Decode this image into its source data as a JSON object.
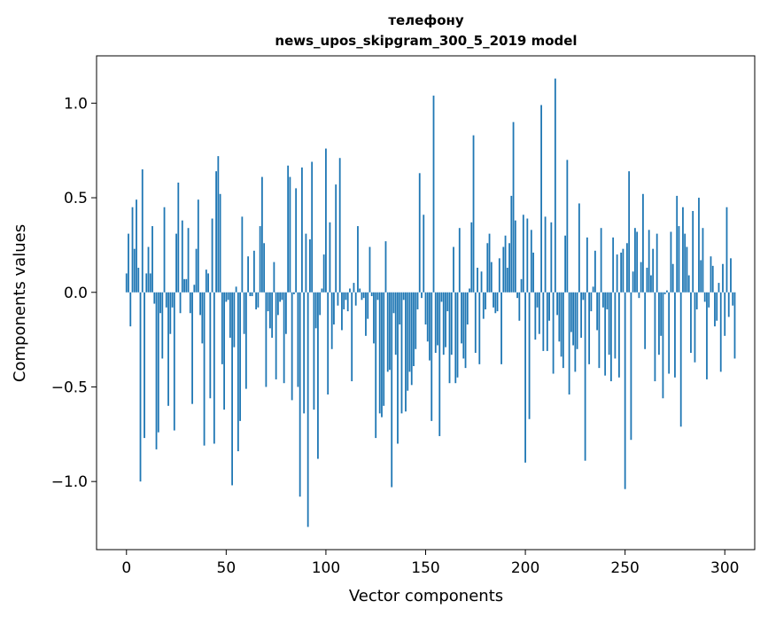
{
  "chart_data": {
    "type": "bar",
    "title_line1": "телефону",
    "title_line2": "news_upos_skipgram_300_5_2019 model",
    "xlabel": "Vector components",
    "ylabel": "Components values",
    "xlim": [
      -15,
      315
    ],
    "ylim": [
      -1.36,
      1.25
    ],
    "xticks": [
      0,
      50,
      100,
      150,
      200,
      250,
      300
    ],
    "xtick_labels": [
      "0",
      "50",
      "100",
      "150",
      "200",
      "250",
      "300"
    ],
    "yticks": [
      -1.0,
      -0.5,
      0.0,
      0.5,
      1.0
    ],
    "ytick_labels": [
      "−1.0",
      "−0.5",
      "0.0",
      "0.5",
      "1.0"
    ],
    "grid": false,
    "bar_color": "#1f77b4",
    "values": [
      0.1,
      0.31,
      -0.18,
      0.45,
      0.23,
      0.49,
      0.13,
      -1.0,
      0.65,
      -0.77,
      0.1,
      0.24,
      0.1,
      0.35,
      -0.06,
      -0.83,
      -0.74,
      -0.11,
      -0.35,
      0.45,
      -0.08,
      -0.6,
      -0.22,
      -0.08,
      -0.73,
      0.31,
      0.58,
      -0.11,
      0.38,
      0.07,
      0.07,
      0.34,
      -0.11,
      -0.59,
      0.04,
      0.23,
      0.49,
      -0.12,
      -0.27,
      -0.81,
      0.12,
      0.1,
      -0.56,
      0.39,
      -0.8,
      0.64,
      0.72,
      0.52,
      -0.38,
      -0.62,
      -0.05,
      -0.04,
      -0.24,
      -1.02,
      -0.29,
      0.03,
      -0.84,
      -0.68,
      0.4,
      -0.22,
      -0.51,
      0.19,
      -0.02,
      -0.02,
      0.22,
      -0.09,
      -0.08,
      0.35,
      0.61,
      0.26,
      -0.5,
      -0.1,
      -0.19,
      -0.24,
      0.16,
      -0.46,
      -0.12,
      -0.05,
      -0.04,
      -0.48,
      -0.22,
      0.67,
      0.61,
      -0.57,
      -0.01,
      0.55,
      -0.5,
      -1.08,
      0.66,
      -0.64,
      0.31,
      -1.24,
      0.28,
      0.69,
      -0.62,
      -0.19,
      -0.88,
      -0.12,
      0.02,
      0.2,
      0.76,
      -0.54,
      0.37,
      -0.3,
      -0.17,
      0.57,
      -0.07,
      0.71,
      -0.2,
      -0.09,
      -0.04,
      -0.1,
      0.02,
      -0.47,
      0.05,
      -0.07,
      0.35,
      0.02,
      -0.04,
      -0.03,
      -0.23,
      -0.14,
      0.24,
      -0.02,
      -0.27,
      -0.77,
      -0.04,
      -0.64,
      -0.66,
      -0.6,
      0.27,
      -0.42,
      -0.41,
      -1.03,
      -0.11,
      -0.33,
      -0.8,
      -0.17,
      -0.64,
      -0.04,
      -0.63,
      -0.52,
      -0.42,
      -0.49,
      -0.39,
      -0.3,
      -0.09,
      0.63,
      -0.03,
      0.41,
      -0.17,
      -0.26,
      -0.36,
      -0.68,
      1.04,
      -0.32,
      -0.28,
      -0.76,
      -0.05,
      -0.33,
      -0.29,
      -0.1,
      -0.48,
      -0.33,
      0.24,
      -0.48,
      -0.45,
      0.34,
      -0.27,
      -0.35,
      -0.4,
      -0.17,
      0.02,
      0.37,
      0.83,
      -0.32,
      0.13,
      -0.38,
      0.11,
      -0.14,
      -0.09,
      0.26,
      0.31,
      0.16,
      -0.08,
      -0.11,
      -0.1,
      0.18,
      -0.38,
      0.24,
      0.3,
      0.13,
      0.26,
      0.51,
      0.9,
      0.38,
      -0.03,
      -0.15,
      0.07,
      0.41,
      -0.9,
      0.39,
      -0.67,
      0.33,
      0.21,
      -0.25,
      -0.08,
      -0.22,
      0.99,
      -0.31,
      0.4,
      -0.31,
      -0.15,
      0.37,
      -0.43,
      1.13,
      -0.12,
      -0.26,
      -0.34,
      -0.4,
      0.3,
      0.7,
      -0.54,
      -0.21,
      -0.28,
      -0.42,
      -0.3,
      0.47,
      -0.24,
      -0.04,
      -0.89,
      0.29,
      -0.38,
      -0.1,
      0.03,
      0.22,
      -0.2,
      -0.4,
      0.34,
      -0.08,
      -0.44,
      -0.09,
      -0.33,
      -0.47,
      0.29,
      -0.35,
      0.2,
      -0.45,
      0.21,
      0.23,
      -1.04,
      0.26,
      0.64,
      -0.78,
      0.11,
      0.34,
      0.32,
      -0.03,
      0.16,
      0.52,
      -0.3,
      0.13,
      0.33,
      0.09,
      0.23,
      -0.47,
      0.31,
      -0.33,
      -0.23,
      -0.56,
      -0.01,
      0.01,
      -0.43,
      0.32,
      0.15,
      -0.45,
      0.51,
      0.35,
      -0.71,
      0.45,
      0.31,
      0.24,
      0.09,
      -0.32,
      0.43,
      -0.37,
      -0.09,
      0.5,
      0.17,
      0.34,
      -0.05,
      -0.46,
      -0.08,
      0.19,
      0.14,
      -0.18,
      -0.15,
      0.05,
      -0.42,
      0.15,
      -0.23,
      0.45,
      -0.13,
      0.18,
      -0.07,
      -0.35
    ]
  }
}
